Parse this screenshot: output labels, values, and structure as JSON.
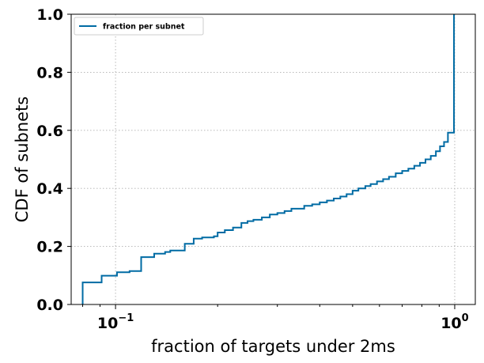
{
  "chart_data": {
    "type": "line",
    "step": true,
    "xlabel": "fraction of targets under 2ms",
    "ylabel": "CDF of subnets",
    "xscale": "log",
    "xlim": [
      0.074,
      1.15
    ],
    "ylim": [
      0.0,
      1.0
    ],
    "grid": true,
    "legend_position": "upper-left",
    "x_tick_labels": [
      {
        "value": 0.1,
        "base": "10",
        "exp": "−1"
      },
      {
        "value": 1.0,
        "base": "10",
        "exp": "0"
      }
    ],
    "y_ticks": [
      0.0,
      0.2,
      0.4,
      0.6,
      0.8,
      1.0
    ],
    "y_tick_labels": [
      "0.0",
      "0.2",
      "0.4",
      "0.6",
      "0.8",
      "1.0"
    ],
    "series": [
      {
        "name": "fraction per subnet",
        "color": "#006ba4",
        "points": [
          [
            0.08,
            0.0
          ],
          [
            0.08,
            0.076
          ],
          [
            0.091,
            0.076
          ],
          [
            0.091,
            0.099
          ],
          [
            0.101,
            0.099
          ],
          [
            0.101,
            0.111
          ],
          [
            0.11,
            0.111
          ],
          [
            0.11,
            0.115
          ],
          [
            0.119,
            0.115
          ],
          [
            0.119,
            0.163
          ],
          [
            0.13,
            0.163
          ],
          [
            0.13,
            0.175
          ],
          [
            0.14,
            0.175
          ],
          [
            0.14,
            0.181
          ],
          [
            0.145,
            0.181
          ],
          [
            0.145,
            0.186
          ],
          [
            0.16,
            0.186
          ],
          [
            0.16,
            0.209
          ],
          [
            0.17,
            0.209
          ],
          [
            0.17,
            0.227
          ],
          [
            0.18,
            0.227
          ],
          [
            0.18,
            0.231
          ],
          [
            0.195,
            0.231
          ],
          [
            0.195,
            0.235
          ],
          [
            0.2,
            0.235
          ],
          [
            0.2,
            0.248
          ],
          [
            0.21,
            0.248
          ],
          [
            0.21,
            0.256
          ],
          [
            0.222,
            0.256
          ],
          [
            0.222,
            0.265
          ],
          [
            0.235,
            0.265
          ],
          [
            0.235,
            0.281
          ],
          [
            0.245,
            0.281
          ],
          [
            0.245,
            0.287
          ],
          [
            0.255,
            0.287
          ],
          [
            0.255,
            0.292
          ],
          [
            0.27,
            0.292
          ],
          [
            0.27,
            0.3
          ],
          [
            0.285,
            0.3
          ],
          [
            0.285,
            0.31
          ],
          [
            0.3,
            0.31
          ],
          [
            0.3,
            0.315
          ],
          [
            0.315,
            0.315
          ],
          [
            0.315,
            0.322
          ],
          [
            0.33,
            0.322
          ],
          [
            0.33,
            0.33
          ],
          [
            0.36,
            0.33
          ],
          [
            0.36,
            0.34
          ],
          [
            0.38,
            0.34
          ],
          [
            0.38,
            0.345
          ],
          [
            0.4,
            0.345
          ],
          [
            0.4,
            0.352
          ],
          [
            0.42,
            0.352
          ],
          [
            0.42,
            0.358
          ],
          [
            0.44,
            0.358
          ],
          [
            0.44,
            0.365
          ],
          [
            0.46,
            0.365
          ],
          [
            0.46,
            0.372
          ],
          [
            0.48,
            0.372
          ],
          [
            0.48,
            0.38
          ],
          [
            0.5,
            0.38
          ],
          [
            0.5,
            0.392
          ],
          [
            0.52,
            0.392
          ],
          [
            0.52,
            0.4
          ],
          [
            0.545,
            0.4
          ],
          [
            0.545,
            0.408
          ],
          [
            0.565,
            0.408
          ],
          [
            0.565,
            0.415
          ],
          [
            0.59,
            0.415
          ],
          [
            0.59,
            0.424
          ],
          [
            0.615,
            0.424
          ],
          [
            0.615,
            0.432
          ],
          [
            0.64,
            0.432
          ],
          [
            0.64,
            0.44
          ],
          [
            0.67,
            0.44
          ],
          [
            0.67,
            0.452
          ],
          [
            0.7,
            0.452
          ],
          [
            0.7,
            0.46
          ],
          [
            0.73,
            0.46
          ],
          [
            0.73,
            0.468
          ],
          [
            0.76,
            0.468
          ],
          [
            0.76,
            0.478
          ],
          [
            0.79,
            0.478
          ],
          [
            0.79,
            0.488
          ],
          [
            0.82,
            0.488
          ],
          [
            0.82,
            0.5
          ],
          [
            0.85,
            0.5
          ],
          [
            0.85,
            0.512
          ],
          [
            0.88,
            0.512
          ],
          [
            0.88,
            0.528
          ],
          [
            0.905,
            0.528
          ],
          [
            0.905,
            0.545
          ],
          [
            0.93,
            0.545
          ],
          [
            0.93,
            0.56
          ],
          [
            0.955,
            0.56
          ],
          [
            0.955,
            0.592
          ],
          [
            0.995,
            0.592
          ],
          [
            0.995,
            1.0
          ]
        ]
      }
    ]
  }
}
